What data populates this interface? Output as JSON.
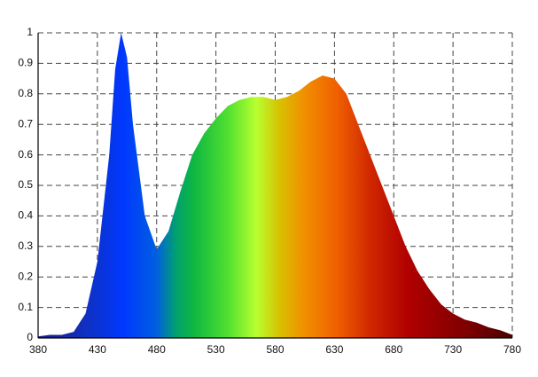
{
  "chart_data": {
    "type": "area",
    "x": [
      380,
      390,
      400,
      410,
      420,
      430,
      440,
      445,
      450,
      455,
      460,
      470,
      480,
      490,
      500,
      510,
      520,
      530,
      540,
      550,
      560,
      570,
      580,
      590,
      600,
      610,
      620,
      630,
      640,
      650,
      660,
      670,
      680,
      690,
      700,
      710,
      720,
      730,
      740,
      750,
      760,
      770,
      780
    ],
    "values": [
      0.005,
      0.01,
      0.01,
      0.02,
      0.08,
      0.25,
      0.6,
      0.88,
      1.0,
      0.92,
      0.7,
      0.4,
      0.29,
      0.35,
      0.48,
      0.6,
      0.67,
      0.72,
      0.76,
      0.78,
      0.79,
      0.79,
      0.78,
      0.79,
      0.81,
      0.84,
      0.86,
      0.85,
      0.8,
      0.7,
      0.6,
      0.5,
      0.4,
      0.3,
      0.22,
      0.16,
      0.11,
      0.08,
      0.06,
      0.05,
      0.035,
      0.025,
      0.01
    ],
    "xlim": [
      380,
      780
    ],
    "ylim": [
      0,
      1
    ],
    "xticks": [
      380,
      430,
      480,
      530,
      580,
      630,
      680,
      730,
      780
    ],
    "yticks": [
      0,
      0.1,
      0.2,
      0.3,
      0.4,
      0.5,
      0.6,
      0.7,
      0.8,
      0.9,
      1
    ],
    "grid": true
  }
}
